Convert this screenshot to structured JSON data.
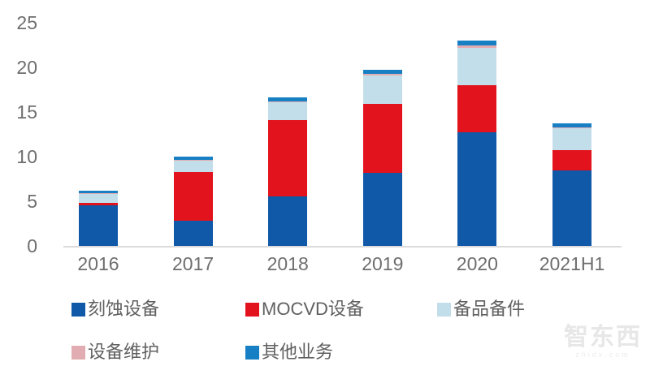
{
  "chart_data": {
    "type": "bar",
    "stacked": true,
    "title": "",
    "xlabel": "",
    "ylabel": "",
    "categories": [
      "2016",
      "2017",
      "2018",
      "2019",
      "2020",
      "2021H1"
    ],
    "series": [
      {
        "name": "刻蚀设备",
        "color": "#1058A8",
        "values": [
          4.5,
          2.8,
          5.5,
          8.2,
          12.7,
          8.45
        ]
      },
      {
        "name": "MOCVD设备",
        "color": "#E2131C",
        "values": [
          0.3,
          5.5,
          8.6,
          7.7,
          5.3,
          2.3
        ]
      },
      {
        "name": "备品备件",
        "color": "#C2DEEA",
        "values": [
          1.0,
          1.2,
          2.0,
          3.2,
          4.2,
          2.45
        ]
      },
      {
        "name": "设备维护",
        "color": "#E2ADB2",
        "values": [
          0.1,
          0.1,
          0.1,
          0.15,
          0.3,
          0.1
        ]
      },
      {
        "name": "其他业务",
        "color": "#1780C4",
        "values": [
          0.3,
          0.4,
          0.4,
          0.45,
          0.5,
          0.4
        ]
      }
    ],
    "yticks": [
      0,
      5,
      10,
      15,
      20,
      25
    ],
    "ylim": [
      0,
      25
    ],
    "grid": false,
    "legend_position": "bottom"
  },
  "colors": {
    "axis_label": "#6E6E6E",
    "axis_line": "#DBDBDB",
    "background": "#FFFFFF"
  },
  "watermark": {
    "text": "智东西",
    "subtext": "zhidx.com"
  }
}
